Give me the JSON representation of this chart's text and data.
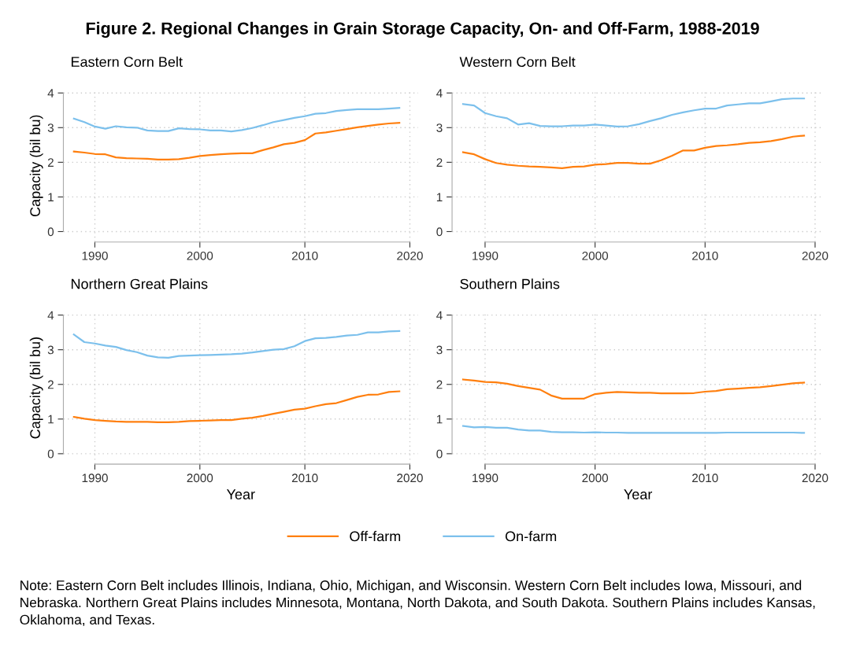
{
  "chart_data": [
    {
      "type": "other",
      "title": "Figure 2. Regional Changes in Grain Storage Capacity, On- and Off-Farm, 1988-2019",
      "annotations": [
        "Note: Eastern Corn Belt includes Illinois, Indiana, Ohio, Michigan, and Wisconsin. Western Corn Belt includes Iowa, Missouri, and Nebraska. Northern Great Plains includes Minnesota, Montana, North Dakota, and South Dakota. Southern Plains includes Kansas, Oklahoma, and Texas."
      ]
    },
    {
      "type": "line",
      "title": "Eastern Corn Belt",
      "ylabel": "Capacity (bil bu)",
      "x": [
        1988,
        1989,
        1990,
        1991,
        1992,
        1993,
        1994,
        1995,
        1996,
        1997,
        1998,
        1999,
        2000,
        2001,
        2002,
        2003,
        2004,
        2005,
        2006,
        2007,
        2008,
        2009,
        2010,
        2011,
        2012,
        2013,
        2014,
        2015,
        2016,
        2017,
        2018,
        2019
      ],
      "xlim": [
        1987,
        2020.8
      ],
      "xticks": [
        1990,
        2000,
        2010,
        2020
      ],
      "ylim": [
        -0.3,
        4.1
      ],
      "yticks": [
        0,
        1,
        2,
        3,
        4
      ],
      "grid": true,
      "line_style": "solid",
      "marker": "none",
      "legend": "bottom",
      "series": [
        {
          "name": "Off-farm",
          "color": "#ff7f0e",
          "values": [
            2.31,
            2.28,
            2.24,
            2.23,
            2.14,
            2.12,
            2.11,
            2.1,
            2.08,
            2.08,
            2.09,
            2.13,
            2.18,
            2.21,
            2.23,
            2.25,
            2.26,
            2.26,
            2.35,
            2.43,
            2.52,
            2.56,
            2.64,
            2.83,
            2.86,
            2.91,
            2.96,
            3.01,
            3.05,
            3.09,
            3.12,
            3.14
          ]
        },
        {
          "name": "On-farm",
          "color": "#7cc0ec",
          "values": [
            3.26,
            3.16,
            3.03,
            2.97,
            3.04,
            3.01,
            3.0,
            2.92,
            2.9,
            2.9,
            2.98,
            2.96,
            2.95,
            2.92,
            2.92,
            2.89,
            2.93,
            2.99,
            3.07,
            3.16,
            3.22,
            3.28,
            3.33,
            3.4,
            3.42,
            3.48,
            3.51,
            3.53,
            3.53,
            3.53,
            3.55,
            3.57
          ]
        }
      ]
    },
    {
      "type": "line",
      "title": "Western Corn Belt",
      "x": [
        1988,
        1989,
        1990,
        1991,
        1992,
        1993,
        1994,
        1995,
        1996,
        1997,
        1998,
        1999,
        2000,
        2001,
        2002,
        2003,
        2004,
        2005,
        2006,
        2007,
        2008,
        2009,
        2010,
        2011,
        2012,
        2013,
        2014,
        2015,
        2016,
        2017,
        2018,
        2019
      ],
      "xlim": [
        1987,
        2020.8
      ],
      "xticks": [
        1990,
        2000,
        2010,
        2020
      ],
      "ylim": [
        -0.3,
        4.1
      ],
      "yticks": [
        0,
        1,
        2,
        3,
        4
      ],
      "grid": true,
      "line_style": "solid",
      "marker": "none",
      "series": [
        {
          "color": "#ff7f0e",
          "values": [
            2.29,
            2.23,
            2.09,
            1.98,
            1.93,
            1.9,
            1.88,
            1.87,
            1.85,
            1.83,
            1.87,
            1.88,
            1.93,
            1.95,
            1.98,
            1.98,
            1.96,
            1.96,
            2.06,
            2.19,
            2.34,
            2.34,
            2.42,
            2.47,
            2.49,
            2.52,
            2.56,
            2.58,
            2.61,
            2.67,
            2.74,
            2.77
          ]
        },
        {
          "color": "#7cc0ec",
          "values": [
            3.68,
            3.64,
            3.42,
            3.33,
            3.27,
            3.09,
            3.13,
            3.05,
            3.04,
            3.04,
            3.06,
            3.06,
            3.09,
            3.06,
            3.03,
            3.04,
            3.1,
            3.19,
            3.27,
            3.37,
            3.44,
            3.5,
            3.55,
            3.55,
            3.64,
            3.67,
            3.7,
            3.7,
            3.76,
            3.82,
            3.84,
            3.84
          ]
        }
      ]
    },
    {
      "type": "line",
      "title": "Northern Great Plains",
      "xlabel": "Year",
      "ylabel": "Capacity (bil bu)",
      "x": [
        1988,
        1989,
        1990,
        1991,
        1992,
        1993,
        1994,
        1995,
        1996,
        1997,
        1998,
        1999,
        2000,
        2001,
        2002,
        2003,
        2004,
        2005,
        2006,
        2007,
        2008,
        2009,
        2010,
        2011,
        2012,
        2013,
        2014,
        2015,
        2016,
        2017,
        2018,
        2019
      ],
      "xlim": [
        1987,
        2020.8
      ],
      "xticks": [
        1990,
        2000,
        2010,
        2020
      ],
      "ylim": [
        -0.3,
        4.1
      ],
      "yticks": [
        0,
        1,
        2,
        3,
        4
      ],
      "grid": true,
      "line_style": "solid",
      "marker": "none",
      "series": [
        {
          "color": "#ff7f0e",
          "values": [
            1.06,
            1.01,
            0.97,
            0.95,
            0.93,
            0.92,
            0.92,
            0.92,
            0.91,
            0.91,
            0.92,
            0.94,
            0.95,
            0.96,
            0.97,
            0.97,
            1.01,
            1.04,
            1.09,
            1.15,
            1.21,
            1.27,
            1.3,
            1.37,
            1.43,
            1.46,
            1.55,
            1.64,
            1.7,
            1.71,
            1.78,
            1.8
          ]
        },
        {
          "color": "#7cc0ec",
          "values": [
            3.44,
            3.22,
            3.18,
            3.12,
            3.08,
            2.99,
            2.93,
            2.83,
            2.78,
            2.77,
            2.82,
            2.83,
            2.84,
            2.85,
            2.86,
            2.87,
            2.89,
            2.92,
            2.96,
            3.0,
            3.02,
            3.1,
            3.25,
            3.33,
            3.34,
            3.37,
            3.41,
            3.43,
            3.5,
            3.5,
            3.53,
            3.54
          ]
        }
      ]
    },
    {
      "type": "line",
      "title": "Southern Plains",
      "xlabel": "Year",
      "x": [
        1988,
        1989,
        1990,
        1991,
        1992,
        1993,
        1994,
        1995,
        1996,
        1997,
        1998,
        1999,
        2000,
        2001,
        2002,
        2003,
        2004,
        2005,
        2006,
        2007,
        2008,
        2009,
        2010,
        2011,
        2012,
        2013,
        2014,
        2015,
        2016,
        2017,
        2018,
        2019
      ],
      "xlim": [
        1987,
        2020.8
      ],
      "xticks": [
        1990,
        2000,
        2010,
        2020
      ],
      "ylim": [
        -0.3,
        4.1
      ],
      "yticks": [
        0,
        1,
        2,
        3,
        4
      ],
      "grid": true,
      "line_style": "solid",
      "marker": "none",
      "series": [
        {
          "color": "#ff7f0e",
          "values": [
            2.14,
            2.11,
            2.07,
            2.06,
            2.02,
            1.95,
            1.9,
            1.85,
            1.68,
            1.59,
            1.59,
            1.59,
            1.72,
            1.76,
            1.78,
            1.77,
            1.76,
            1.76,
            1.74,
            1.74,
            1.74,
            1.75,
            1.79,
            1.81,
            1.86,
            1.88,
            1.9,
            1.92,
            1.95,
            1.99,
            2.03,
            2.05
          ]
        },
        {
          "color": "#7cc0ec",
          "values": [
            0.8,
            0.76,
            0.77,
            0.75,
            0.75,
            0.7,
            0.67,
            0.67,
            0.63,
            0.62,
            0.62,
            0.61,
            0.62,
            0.61,
            0.61,
            0.6,
            0.6,
            0.6,
            0.6,
            0.6,
            0.6,
            0.6,
            0.6,
            0.6,
            0.61,
            0.61,
            0.61,
            0.61,
            0.61,
            0.61,
            0.61,
            0.6
          ]
        }
      ]
    }
  ]
}
